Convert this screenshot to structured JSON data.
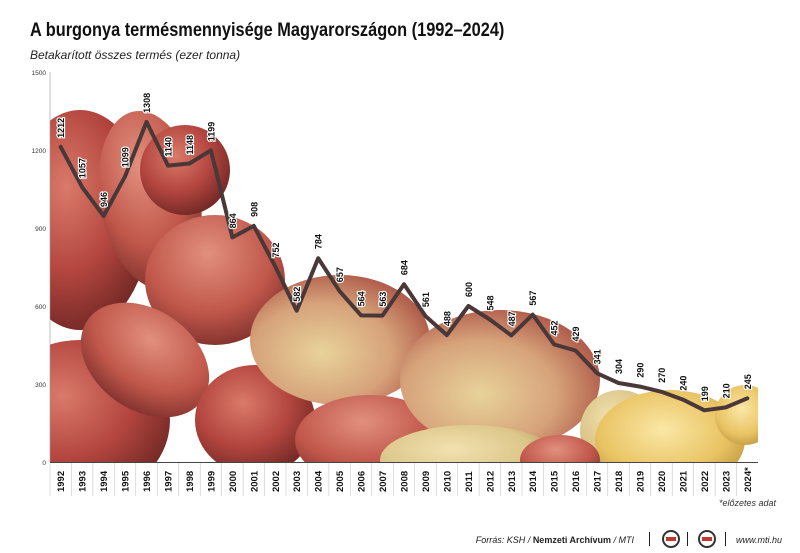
{
  "title": "A burgonya termésmennyisége Magyarországon (1992–2024)",
  "subtitle": "Betakarított összes termés (ezer tonna)",
  "footnote": "*előzetes adat",
  "footer": {
    "source_prefix": "Forrás: KSH / ",
    "source_bold": "Nemzeti Archívum",
    "source_suffix": " / MTI",
    "url": "www.mti.hu",
    "logo_icons": [
      "mtva-logo-icon",
      "mti-logo-icon"
    ]
  },
  "colors": {
    "line": "#4a3838",
    "potato_red": "#b4463f",
    "potato_yellow": "#dcc68a"
  },
  "chart_data": {
    "type": "line",
    "title": "A burgonya termésmennyisége Magyarországon (1992–2024)",
    "ylabel": "",
    "xlabel": "",
    "ylim": [
      0,
      1500
    ],
    "yticks": [
      "0",
      "300",
      "600",
      "900",
      "1200",
      "1500"
    ],
    "ytick_values": [
      0,
      300,
      600,
      900,
      1200,
      1500
    ],
    "grid": false,
    "categories": [
      "1992",
      "1993",
      "1994",
      "1995",
      "1996",
      "1997",
      "1998",
      "1999",
      "2000",
      "2001",
      "2002",
      "2003",
      "2004",
      "2005",
      "2006",
      "2007",
      "2008",
      "2009",
      "2010",
      "2011",
      "2012",
      "2013",
      "2014",
      "2015",
      "2016",
      "2017",
      "2018",
      "2019",
      "2020",
      "2021",
      "2022",
      "2023",
      "2024*"
    ],
    "values": [
      1212,
      1057,
      946,
      1099,
      1308,
      1140,
      1148,
      1199,
      864,
      908,
      752,
      582,
      784,
      657,
      564,
      563,
      684,
      561,
      488,
      600,
      548,
      487,
      567,
      452,
      429,
      341,
      304,
      290,
      270,
      240,
      199,
      210,
      245
    ],
    "data_labels": [
      "1212",
      "1057",
      "946",
      "1099",
      "1308",
      "1140",
      "1148",
      "1199",
      "864",
      "908",
      "752",
      "582",
      "784",
      "657",
      "564",
      "563",
      "684",
      "561",
      "488",
      "600",
      "548",
      "487",
      "567",
      "452",
      "429",
      "341",
      "304",
      "290",
      "270",
      "240",
      "199",
      "210",
      "245"
    ]
  }
}
